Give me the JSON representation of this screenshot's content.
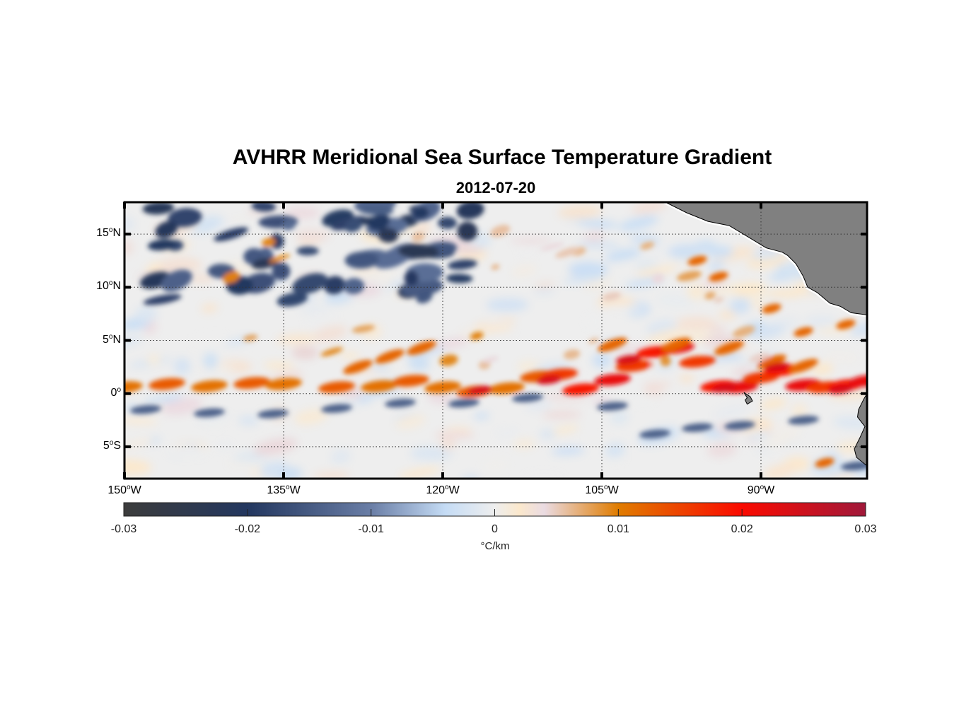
{
  "chart_data": {
    "type": "heatmap",
    "title": "AVHRR Meridional Sea Surface Temperature Gradient",
    "subtitle": "2012-07-20",
    "variable": "Meridional SST gradient",
    "units": "°C/km",
    "lon_range": [
      -150,
      -80
    ],
    "lat_range": [
      -8,
      18
    ],
    "x_ticks": [
      {
        "value": -150,
        "deg": "150",
        "hemi": "W"
      },
      {
        "value": -135,
        "deg": "135",
        "hemi": "W"
      },
      {
        "value": -120,
        "deg": "120",
        "hemi": "W"
      },
      {
        "value": -105,
        "deg": "105",
        "hemi": "W"
      },
      {
        "value": -90,
        "deg": "90",
        "hemi": "W"
      }
    ],
    "y_ticks": [
      {
        "value": 15,
        "deg": "15",
        "hemi": "N"
      },
      {
        "value": 10,
        "deg": "10",
        "hemi": "N"
      },
      {
        "value": 5,
        "deg": "5",
        "hemi": "N"
      },
      {
        "value": 0,
        "deg": "0",
        "hemi": ""
      },
      {
        "value": -5,
        "deg": "5",
        "hemi": "S"
      }
    ],
    "grid": "dotted",
    "colorbar": {
      "position": "bottom",
      "range": [
        -0.03,
        0.03
      ],
      "ticks": [
        "-0.03",
        "-0.02",
        "-0.01",
        "0",
        "0.01",
        "0.02",
        "0.03"
      ],
      "tick_values": [
        -0.03,
        -0.02,
        -0.01,
        0,
        0.01,
        0.02,
        0.03
      ],
      "label": "°C/km",
      "colors": [
        {
          "v": -0.03,
          "c": "#3c3c3c"
        },
        {
          "v": -0.02,
          "c": "#23375f"
        },
        {
          "v": -0.01,
          "c": "#6a7ea6"
        },
        {
          "v": -0.004,
          "c": "#c5dcf5"
        },
        {
          "v": 0,
          "c": "#eeeeee"
        },
        {
          "v": 0.002,
          "c": "#fbe8cc"
        },
        {
          "v": 0.004,
          "c": "#eadbe2"
        },
        {
          "v": 0.01,
          "c": "#e07c00"
        },
        {
          "v": 0.02,
          "c": "#fa0a00"
        },
        {
          "v": 0.03,
          "c": "#a0183a"
        }
      ]
    },
    "features": [
      {
        "name": "equatorial front band",
        "lon_span": [
          -150,
          -80
        ],
        "lat_approx": 1,
        "value": 0.015
      },
      {
        "name": "north negative patches",
        "lon_span": [
          -150,
          -118
        ],
        "lat_span": [
          8,
          18
        ],
        "value": -0.02
      },
      {
        "name": "south negative band",
        "lon_span": [
          -150,
          -110
        ],
        "lat_approx": -1.5,
        "value": -0.015
      },
      {
        "name": "Central America land",
        "color": "#808080"
      }
    ],
    "land_color": "#808080"
  }
}
